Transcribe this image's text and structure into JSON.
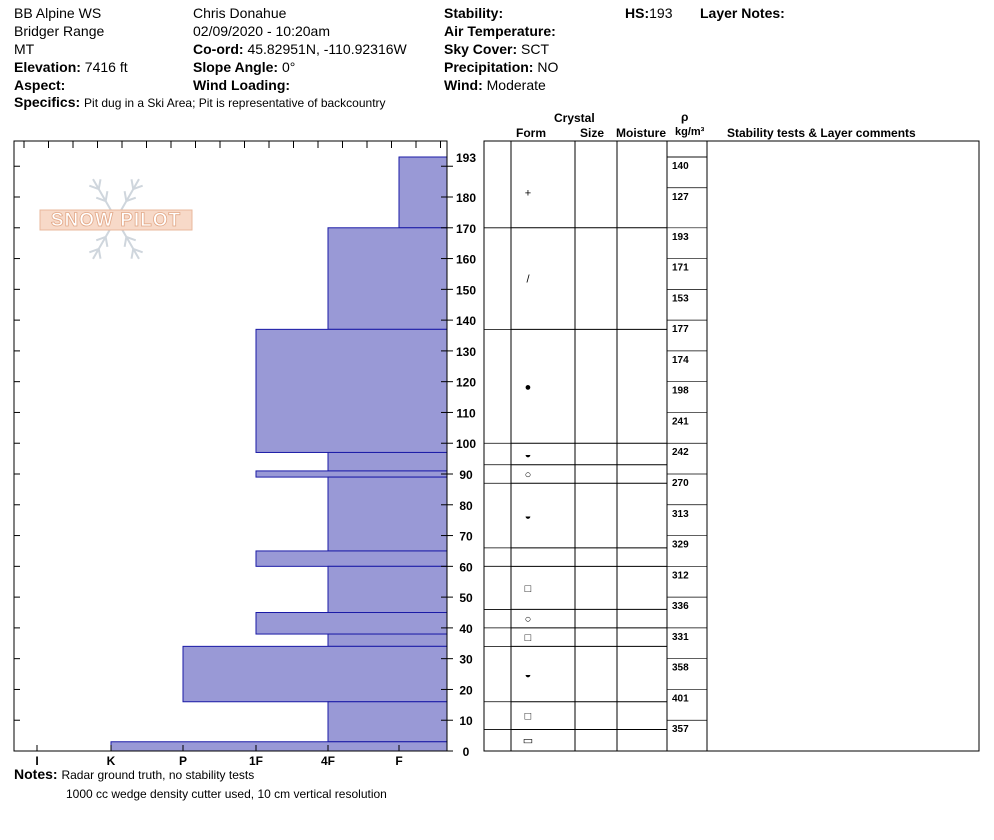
{
  "header": {
    "location": "BB Alpine WS",
    "range": "Bridger Range",
    "state": "MT",
    "elevation_label": "Elevation:",
    "elevation": "7416 ft",
    "aspect_label": "Aspect:",
    "aspect": "",
    "observer": "Chris Donahue",
    "datetime": "02/09/2020 - 10:20am",
    "coord_label": "Co-ord:",
    "coord": "45.82951N, -110.92316W",
    "slope_label": "Slope Angle:",
    "slope": "0°",
    "wind_loading_label": "Wind Loading:",
    "wind_loading": "",
    "stability_label": "Stability:",
    "stability": "",
    "air_temp_label": "Air Temperature:",
    "air_temp": "",
    "sky_label": "Sky Cover:",
    "sky": "SCT",
    "precip_label": "Precipitation:",
    "precip": "NO",
    "wind_label": "Wind:",
    "wind": "Moderate",
    "hs_label": "HS:",
    "hs": "193",
    "layer_notes_label": "Layer Notes:",
    "specifics_label": "Specifics:",
    "specifics": "Pit dug in a Ski Area; Pit is representative of backcountry"
  },
  "notes": {
    "label": "Notes:",
    "line1": "Radar ground truth, no stability tests",
    "line2": "1000 cc wedge density cutter used, 10 cm vertical resolution"
  },
  "columns": {
    "crystal": "Crystal",
    "form": "Form",
    "size": "Size",
    "moisture": "Moisture",
    "rho": "ρ",
    "density_unit": "kg/m³",
    "comments": "Stability tests & Layer comments"
  },
  "logo_text": "SNOW PILOT",
  "colors": {
    "bar_fill": "#9999d6",
    "bar_stroke": "#1a1aa6",
    "logo": "#f4c8b0"
  },
  "chart_data": {
    "type": "bar",
    "orientation": "horizontal",
    "hardness_scale": [
      "I",
      "K",
      "P",
      "1F",
      "4F",
      "F"
    ],
    "y_ticks": [
      0,
      10,
      20,
      30,
      40,
      50,
      60,
      70,
      80,
      90,
      100,
      110,
      120,
      130,
      140,
      150,
      160,
      170,
      180,
      193
    ],
    "ylim": [
      0,
      193
    ],
    "hardness_layers": [
      {
        "top": 193,
        "bottom": 170,
        "hardness": "F"
      },
      {
        "top": 170,
        "bottom": 137,
        "hardness": "4F"
      },
      {
        "top": 137,
        "bottom": 97,
        "hardness": "1F"
      },
      {
        "top": 97,
        "bottom": 91,
        "hardness": "4F"
      },
      {
        "top": 91,
        "bottom": 89,
        "hardness": "1F"
      },
      {
        "top": 89,
        "bottom": 65,
        "hardness": "4F"
      },
      {
        "top": 65,
        "bottom": 60,
        "hardness": "1F"
      },
      {
        "top": 60,
        "bottom": 45,
        "hardness": "4F"
      },
      {
        "top": 45,
        "bottom": 38,
        "hardness": "1F"
      },
      {
        "top": 38,
        "bottom": 34,
        "hardness": "4F"
      },
      {
        "top": 34,
        "bottom": 16,
        "hardness": "P"
      },
      {
        "top": 16,
        "bottom": 3,
        "hardness": "4F"
      },
      {
        "top": 3,
        "bottom": 0,
        "hardness": "K"
      }
    ],
    "column_layers": [
      {
        "top": 193,
        "bottom": 170,
        "form": "+"
      },
      {
        "top": 170,
        "bottom": 137,
        "form": "/"
      },
      {
        "top": 137,
        "bottom": 100,
        "form": "●"
      },
      {
        "top": 100,
        "bottom": 93,
        "form": "◒"
      },
      {
        "top": 93,
        "bottom": 87,
        "form": "○"
      },
      {
        "top": 87,
        "bottom": 66,
        "form": "◒"
      },
      {
        "top": 66,
        "bottom": 60,
        "form": ""
      },
      {
        "top": 60,
        "bottom": 46,
        "form": "□"
      },
      {
        "top": 46,
        "bottom": 40,
        "form": "○"
      },
      {
        "top": 40,
        "bottom": 34,
        "form": "□"
      },
      {
        "top": 34,
        "bottom": 16,
        "form": "◒"
      },
      {
        "top": 16,
        "bottom": 7,
        "form": "□"
      },
      {
        "top": 7,
        "bottom": 0,
        "form": "▭"
      }
    ],
    "density": [
      {
        "top": 193,
        "bottom": 183,
        "value": 140
      },
      {
        "top": 183,
        "bottom": 170,
        "value": 127
      },
      {
        "top": 170,
        "bottom": 160,
        "value": 193
      },
      {
        "top": 160,
        "bottom": 150,
        "value": 171
      },
      {
        "top": 150,
        "bottom": 140,
        "value": 153
      },
      {
        "top": 140,
        "bottom": 130,
        "value": 177
      },
      {
        "top": 130,
        "bottom": 120,
        "value": 174
      },
      {
        "top": 120,
        "bottom": 110,
        "value": 198
      },
      {
        "top": 110,
        "bottom": 100,
        "value": 241
      },
      {
        "top": 100,
        "bottom": 90,
        "value": 242
      },
      {
        "top": 90,
        "bottom": 80,
        "value": 270
      },
      {
        "top": 80,
        "bottom": 70,
        "value": 313
      },
      {
        "top": 70,
        "bottom": 60,
        "value": 329
      },
      {
        "top": 60,
        "bottom": 50,
        "value": 312
      },
      {
        "top": 50,
        "bottom": 40,
        "value": 336
      },
      {
        "top": 40,
        "bottom": 30,
        "value": 331
      },
      {
        "top": 30,
        "bottom": 20,
        "value": 358
      },
      {
        "top": 20,
        "bottom": 10,
        "value": 401
      },
      {
        "top": 10,
        "bottom": 0,
        "value": 357
      }
    ]
  }
}
